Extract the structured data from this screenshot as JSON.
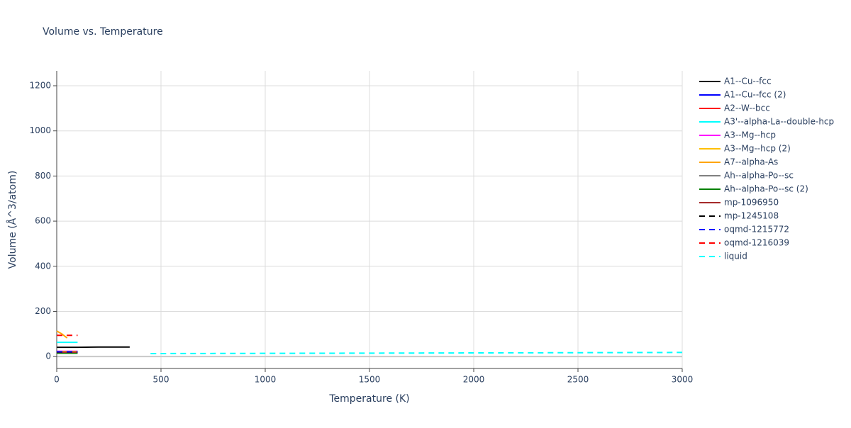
{
  "chart_data": {
    "type": "line",
    "title": "Volume vs. Temperature",
    "x_label": "Temperature (K)",
    "y_label": "Volume (Å^3/atom)",
    "xlim": [
      0,
      3000
    ],
    "xticks": [
      0,
      500,
      1000,
      1500,
      2000,
      2500,
      3000
    ],
    "ylim": [
      -53,
      1266
    ],
    "yticks": [
      0,
      200,
      400,
      600,
      800,
      1000,
      1200
    ],
    "grid": true,
    "legend": "right",
    "series": [
      {
        "name": "A1--Cu--fcc",
        "color": "#000000",
        "dash": "solid",
        "x": [
          0,
          100,
          200,
          350
        ],
        "values": [
          41,
          41,
          42,
          42
        ]
      },
      {
        "name": "A1--Cu--fcc (2)",
        "color": "#0000ff",
        "dash": "solid",
        "x": [
          0,
          50,
          100
        ],
        "values": [
          16,
          16,
          16
        ]
      },
      {
        "name": "A2--W--bcc",
        "color": "#ff0000",
        "dash": "solid",
        "x": [
          0,
          50,
          100
        ],
        "values": [
          17,
          17,
          17
        ]
      },
      {
        "name": "A3'--alpha-La--double-hcp",
        "color": "#00ffff",
        "dash": "solid",
        "x": [
          0,
          50,
          100
        ],
        "values": [
          63,
          63,
          63
        ]
      },
      {
        "name": "A3--Mg--hcp",
        "color": "#ff00ff",
        "dash": "solid",
        "x": [
          0,
          50,
          100
        ],
        "values": [
          23,
          23,
          23
        ]
      },
      {
        "name": "A3--Mg--hcp (2)",
        "color": "#ffbf00",
        "dash": "solid",
        "x": [
          0,
          50,
          100
        ],
        "values": [
          22,
          22,
          22
        ]
      },
      {
        "name": "A7--alpha-As",
        "color": "#ffa500",
        "dash": "solid",
        "x": [
          0,
          25,
          50
        ],
        "values": [
          113,
          100,
          82
        ]
      },
      {
        "name": "Ah--alpha-Po--sc",
        "color": "#808080",
        "dash": "solid",
        "x": [
          0,
          50,
          100
        ],
        "values": [
          18,
          18,
          18
        ]
      },
      {
        "name": "Ah--alpha-Po--sc (2)",
        "color": "#008000",
        "dash": "solid",
        "x": [
          0,
          50,
          100
        ],
        "values": [
          15,
          15,
          15
        ]
      },
      {
        "name": "mp-1096950",
        "color": "#a52a2a",
        "dash": "solid",
        "x": [
          0,
          50,
          100
        ],
        "values": [
          19,
          19,
          19
        ]
      },
      {
        "name": "mp-1245108",
        "color": "#000000",
        "dash": "dash",
        "x": [
          0,
          50,
          100
        ],
        "values": [
          20,
          20,
          20
        ]
      },
      {
        "name": "oqmd-1215772",
        "color": "#0000ff",
        "dash": "dash",
        "x": [
          0,
          50,
          100
        ],
        "values": [
          21,
          21,
          21
        ]
      },
      {
        "name": "oqmd-1216039",
        "color": "#ff0000",
        "dash": "dash",
        "x": [
          0,
          50,
          100
        ],
        "values": [
          94,
          94,
          94
        ]
      },
      {
        "name": "liquid",
        "color": "#00ffff",
        "dash": "dash",
        "x": [
          450,
          1000,
          1500,
          2000,
          2500,
          3000
        ],
        "values": [
          13,
          14,
          15,
          16,
          17,
          18
        ]
      }
    ]
  }
}
